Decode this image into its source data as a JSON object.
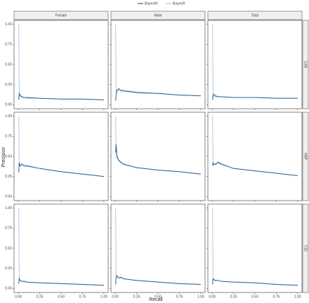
{
  "chart_data": {
    "type": "line",
    "xlabel": "Recall",
    "ylabel": "Precision",
    "columns": [
      "Female",
      "Male",
      "Total"
    ],
    "rows": [
      "CAD",
      "HBP",
      "T2D"
    ],
    "series": [
      {
        "name": "BayesW",
        "color": "#2b5f91"
      },
      {
        "name": "BayesR",
        "color": "#a9cbe8"
      }
    ],
    "xlim": [
      -0.05,
      1.05
    ],
    "ylim": [
      -0.05,
      1.05
    ],
    "xticks": [
      {
        "value": 0,
        "label": "0.00"
      },
      {
        "value": 0.25,
        "label": "0.25"
      },
      {
        "value": 0.5,
        "label": "0.50"
      },
      {
        "value": 0.75,
        "label": "0.75"
      },
      {
        "value": 1,
        "label": "1.00"
      }
    ],
    "yticks": [
      {
        "value": 0,
        "label": "0.00"
      },
      {
        "value": 0.25,
        "label": "0.25"
      },
      {
        "value": 0.5,
        "label": "0.50"
      },
      {
        "value": 0.75,
        "label": "0.75"
      },
      {
        "value": 1,
        "label": "1.00"
      }
    ],
    "panels": [
      [
        {
          "series": [
            {
              "x": [
                0.005,
                0.01,
                0.02,
                0.04,
                0.07,
                0.1,
                0.25,
                0.5,
                0.75,
                1.0
              ],
              "values": [
                0.06,
                0.14,
                0.12,
                0.1,
                0.09,
                0.09,
                0.08,
                0.07,
                0.07,
                0.06
              ]
            },
            {
              "x": [
                0.005,
                0.01,
                0.02,
                0.04,
                0.07,
                0.1,
                0.25,
                0.5,
                0.75,
                1.0
              ],
              "values": [
                1.0,
                0.16,
                0.1,
                0.09,
                0.09,
                0.08,
                0.08,
                0.07,
                0.07,
                0.06
              ]
            }
          ]
        },
        {
          "series": [
            {
              "x": [
                0.005,
                0.01,
                0.02,
                0.04,
                0.07,
                0.1,
                0.25,
                0.5,
                0.75,
                1.0
              ],
              "values": [
                0.05,
                0.12,
                0.18,
                0.2,
                0.17,
                0.17,
                0.15,
                0.14,
                0.12,
                0.11
              ]
            },
            {
              "x": [
                0.005,
                0.01,
                0.02,
                0.04,
                0.07,
                0.1,
                0.25,
                0.5,
                0.75,
                1.0
              ],
              "values": [
                1.0,
                0.15,
                0.16,
                0.18,
                0.19,
                0.18,
                0.16,
                0.14,
                0.12,
                0.11
              ]
            }
          ]
        },
        {
          "series": [
            {
              "x": [
                0.005,
                0.01,
                0.02,
                0.04,
                0.07,
                0.1,
                0.25,
                0.5,
                0.75,
                1.0
              ],
              "values": [
                0.06,
                0.12,
                0.13,
                0.11,
                0.1,
                0.1,
                0.09,
                0.09,
                0.08,
                0.08
              ]
            },
            {
              "x": [
                0.005,
                0.01,
                0.02,
                0.04,
                0.07,
                0.1,
                0.25,
                0.5,
                0.75,
                1.0
              ],
              "values": [
                1.0,
                0.14,
                0.1,
                0.1,
                0.1,
                0.1,
                0.09,
                0.09,
                0.08,
                0.08
              ]
            }
          ]
        }
      ],
      [
        {
          "series": [
            {
              "x": [
                0.005,
                0.01,
                0.02,
                0.04,
                0.07,
                0.1,
                0.25,
                0.5,
                0.75,
                1.0
              ],
              "values": [
                0.3,
                0.42,
                0.38,
                0.4,
                0.38,
                0.38,
                0.35,
                0.31,
                0.28,
                0.25
              ]
            },
            {
              "x": [
                0.005,
                0.01,
                0.02,
                0.04,
                0.07,
                0.1,
                0.25,
                0.5,
                0.75,
                1.0
              ],
              "values": [
                1.0,
                0.4,
                0.42,
                0.41,
                0.4,
                0.39,
                0.35,
                0.31,
                0.28,
                0.25
              ]
            }
          ]
        },
        {
          "series": [
            {
              "x": [
                0.005,
                0.01,
                0.02,
                0.04,
                0.07,
                0.1,
                0.25,
                0.5,
                0.75,
                1.0
              ],
              "values": [
                0.55,
                0.65,
                0.5,
                0.45,
                0.42,
                0.4,
                0.36,
                0.33,
                0.31,
                0.28
              ]
            },
            {
              "x": [
                0.005,
                0.01,
                0.02,
                0.04,
                0.07,
                0.1,
                0.25,
                0.5,
                0.75,
                1.0
              ],
              "values": [
                1.0,
                0.55,
                0.48,
                0.46,
                0.43,
                0.41,
                0.36,
                0.33,
                0.31,
                0.28
              ]
            }
          ]
        },
        {
          "series": [
            {
              "x": [
                0.005,
                0.01,
                0.02,
                0.04,
                0.07,
                0.1,
                0.25,
                0.5,
                0.75,
                1.0
              ],
              "values": [
                0.38,
                0.42,
                0.4,
                0.4,
                0.43,
                0.41,
                0.35,
                0.32,
                0.29,
                0.26
              ]
            },
            {
              "x": [
                0.005,
                0.01,
                0.02,
                0.04,
                0.07,
                0.1,
                0.25,
                0.5,
                0.75,
                1.0
              ],
              "values": [
                1.0,
                0.42,
                0.41,
                0.41,
                0.42,
                0.4,
                0.35,
                0.32,
                0.29,
                0.26
              ]
            }
          ]
        }
      ],
      [
        {
          "series": [
            {
              "x": [
                0.005,
                0.01,
                0.02,
                0.04,
                0.07,
                0.1,
                0.25,
                0.5,
                0.75,
                1.0
              ],
              "values": [
                0.06,
                0.12,
                0.1,
                0.09,
                0.09,
                0.08,
                0.07,
                0.06,
                0.05,
                0.04
              ]
            },
            {
              "x": [
                0.005,
                0.01,
                0.02,
                0.04,
                0.07,
                0.1,
                0.25,
                0.5,
                0.75,
                1.0
              ],
              "values": [
                1.0,
                0.14,
                0.1,
                0.09,
                0.08,
                0.08,
                0.07,
                0.06,
                0.05,
                0.04
              ]
            }
          ]
        },
        {
          "series": [
            {
              "x": [
                0.005,
                0.01,
                0.02,
                0.04,
                0.07,
                0.1,
                0.25,
                0.5,
                0.75,
                1.0
              ],
              "values": [
                0.05,
                0.14,
                0.16,
                0.13,
                0.14,
                0.12,
                0.1,
                0.08,
                0.06,
                0.05
              ]
            },
            {
              "x": [
                0.005,
                0.01,
                0.02,
                0.04,
                0.07,
                0.1,
                0.25,
                0.5,
                0.75,
                1.0
              ],
              "values": [
                1.0,
                0.15,
                0.14,
                0.13,
                0.13,
                0.12,
                0.1,
                0.08,
                0.06,
                0.05
              ]
            }
          ]
        },
        {
          "series": [
            {
              "x": [
                0.005,
                0.01,
                0.02,
                0.04,
                0.07,
                0.1,
                0.25,
                0.5,
                0.75,
                1.0
              ],
              "values": [
                0.05,
                0.12,
                0.11,
                0.1,
                0.1,
                0.09,
                0.08,
                0.07,
                0.05,
                0.04
              ]
            },
            {
              "x": [
                0.005,
                0.01,
                0.02,
                0.04,
                0.07,
                0.1,
                0.25,
                0.5,
                0.75,
                1.0
              ],
              "values": [
                1.0,
                0.13,
                0.1,
                0.1,
                0.1,
                0.09,
                0.08,
                0.07,
                0.05,
                0.04
              ]
            }
          ]
        }
      ]
    ]
  }
}
